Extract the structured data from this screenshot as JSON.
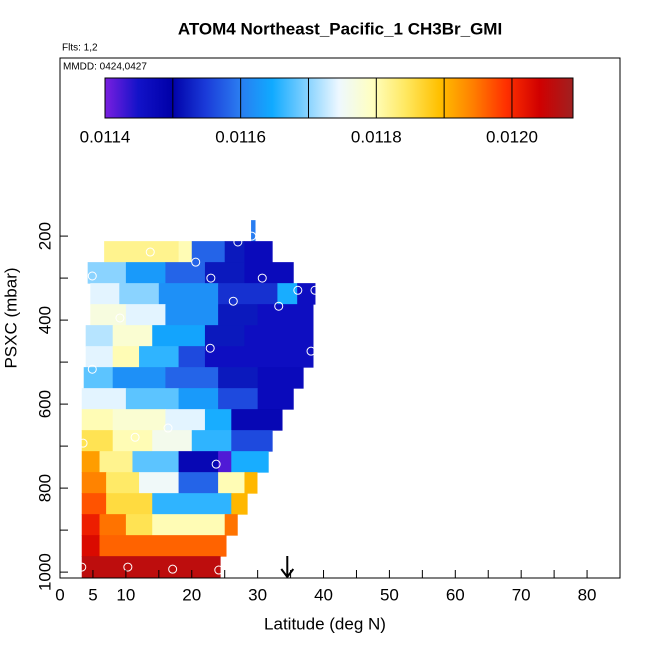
{
  "chart_data": {
    "type": "curtain",
    "title": "ATOM4 Northeast_Pacific_1 CH3Br_GMI",
    "flights": "Flts: 1,2",
    "dates": "MMDD: 0424,0427",
    "xlabel": "Latitude (deg N)",
    "ylabel": "PSXC (mbar)",
    "xlim": [
      0,
      85
    ],
    "xticks": [
      0,
      5,
      10,
      20,
      30,
      40,
      50,
      60,
      70,
      80
    ],
    "xminor_ticks": [
      15,
      25,
      35,
      45,
      55,
      65,
      75,
      85
    ],
    "ylim": [
      1014,
      -224
    ],
    "yticks": [
      200,
      400,
      600,
      800,
      1000
    ],
    "yminor_ticks": [
      300,
      500,
      700,
      900
    ],
    "colorbar": {
      "lim": [
        0.0114,
        0.01209
      ],
      "ticks": [
        0.0114,
        0.0116,
        0.0118,
        {
          "value": 0.012,
          "label": "0.0120"
        }
      ],
      "breaks": [
        0.0115,
        0.0116,
        0.0117,
        0.0118,
        0.0119,
        0.012
      ],
      "colors": [
        "#7a1fe0",
        "#1212c8",
        "#0000a8",
        "#1a3ad8",
        "#2a7af0",
        "#10aaff",
        "#80d0ff",
        "#eef8ff",
        "#ffffc0",
        "#ffe860",
        "#ffc000",
        "#ff8000",
        "#ff3000",
        "#d00000",
        "#a02020"
      ]
    },
    "rows": [
      {
        "p": [
          162,
          212
        ],
        "cells": [
          [
            29,
            29.6,
            0.0116
          ]
        ]
      },
      {
        "p": [
          212,
          262
        ],
        "cells": [
          [
            6.7,
            18,
            0.01182
          ],
          [
            18,
            20,
            0.0118
          ],
          [
            20,
            25,
            0.01158
          ],
          [
            25,
            28,
            0.01152
          ],
          [
            28,
            32.2,
            0.01147
          ]
        ]
      },
      {
        "p": [
          262,
          312
        ],
        "cells": [
          [
            4.2,
            10,
            0.0117
          ],
          [
            10,
            16,
            0.01163
          ],
          [
            16,
            22,
            0.01158
          ],
          [
            22,
            28,
            0.01152
          ],
          [
            28,
            35.4,
            0.01147
          ]
        ]
      },
      {
        "p": [
          312,
          362
        ],
        "cells": [
          [
            4.6,
            9,
            0.01174
          ],
          [
            9,
            15,
            0.0117
          ],
          [
            15,
            24,
            0.01162
          ],
          [
            24,
            33,
            0.01154
          ],
          [
            33,
            36,
            0.01165
          ],
          [
            36,
            38.7,
            0.01146
          ]
        ]
      },
      {
        "p": [
          362,
          412
        ],
        "cells": [
          [
            4.6,
            10,
            0.01177
          ],
          [
            10,
            16,
            0.01174
          ],
          [
            16,
            24,
            0.01162
          ],
          [
            24,
            30,
            0.01152
          ],
          [
            30,
            38.4,
            0.01146
          ]
        ]
      },
      {
        "p": [
          412,
          462
        ],
        "cells": [
          [
            3.9,
            8,
            0.01172
          ],
          [
            8,
            14,
            0.01178
          ],
          [
            14,
            22,
            0.01164
          ],
          [
            22,
            28,
            0.01152
          ],
          [
            28,
            38.4,
            0.01146
          ]
        ]
      },
      {
        "p": [
          462,
          512
        ],
        "cells": [
          [
            3.9,
            8,
            0.01174
          ],
          [
            8,
            12,
            0.0118
          ],
          [
            12,
            18,
            0.01166
          ],
          [
            18,
            22,
            0.01156
          ],
          [
            22,
            38.4,
            0.01146
          ]
        ]
      },
      {
        "p": [
          512,
          562
        ],
        "cells": [
          [
            3.6,
            8,
            0.01168
          ],
          [
            8,
            16,
            0.01162
          ],
          [
            16,
            24,
            0.01158
          ],
          [
            24,
            30,
            0.01152
          ],
          [
            30,
            36.9,
            0.01147
          ]
        ]
      },
      {
        "p": [
          562,
          612
        ],
        "cells": [
          [
            3.3,
            10,
            0.01174
          ],
          [
            10,
            18,
            0.01168
          ],
          [
            18,
            24,
            0.01163
          ],
          [
            24,
            30,
            0.01156
          ],
          [
            30,
            35.4,
            0.01147
          ]
        ]
      },
      {
        "p": [
          612,
          662
        ],
        "cells": [
          [
            3.3,
            8,
            0.0118
          ],
          [
            8,
            16,
            0.01178
          ],
          [
            16,
            22,
            0.01174
          ],
          [
            22,
            26,
            0.01165
          ],
          [
            26,
            33.7,
            0.01148
          ]
        ]
      },
      {
        "p": [
          662,
          712
        ],
        "cells": [
          [
            3.3,
            8,
            0.01185
          ],
          [
            8,
            14,
            0.0118
          ],
          [
            14,
            20,
            0.01176
          ],
          [
            20,
            26,
            0.01166
          ],
          [
            26,
            32.2,
            0.01156
          ]
        ]
      },
      {
        "p": [
          712,
          762
        ],
        "cells": [
          [
            3.3,
            6,
            0.01192
          ],
          [
            6,
            11,
            0.01182
          ],
          [
            11,
            18,
            0.01168
          ],
          [
            18,
            24,
            0.01148
          ],
          [
            24,
            26,
            0.01142
          ],
          [
            26,
            31.6,
            0.01165
          ]
        ]
      },
      {
        "p": [
          762,
          812
        ],
        "cells": [
          [
            3.3,
            7,
            0.01194
          ],
          [
            7,
            12,
            0.01184
          ],
          [
            12,
            18,
            0.01175
          ],
          [
            18,
            24,
            0.01158
          ],
          [
            24,
            28,
            0.0118
          ],
          [
            28,
            29.9,
            0.0119
          ]
        ]
      },
      {
        "p": [
          812,
          862
        ],
        "cells": [
          [
            3.3,
            7,
            0.01197
          ],
          [
            7,
            14,
            0.01186
          ],
          [
            14,
            26,
            0.01166
          ],
          [
            26,
            28.4,
            0.0119
          ]
        ]
      },
      {
        "p": [
          862,
          912
        ],
        "cells": [
          [
            3.3,
            6,
            0.01201
          ],
          [
            6,
            10,
            0.01195
          ],
          [
            10,
            14,
            0.01185
          ],
          [
            14,
            25,
            0.0118
          ],
          [
            25,
            26.9,
            0.01195
          ]
        ]
      },
      {
        "p": [
          912,
          962
        ],
        "cells": [
          [
            3.3,
            6,
            0.01203
          ],
          [
            6,
            25.2,
            0.01196
          ]
        ]
      },
      {
        "p": [
          962,
          1014
        ],
        "cells": [
          [
            3.3,
            24.3,
            0.01206
          ]
        ]
      }
    ],
    "points": {
      "x": [
        27,
        29.1,
        20.6,
        13.7,
        22.9,
        30.7,
        4.9,
        26.3,
        33.2,
        36.1,
        38.7,
        9.1,
        22.8,
        38.1,
        4.9,
        16.4,
        11.4,
        3.5,
        23.7,
        3.3,
        10.3,
        17.1,
        24.1
      ],
      "y": [
        214,
        200,
        262,
        238,
        300,
        300,
        295,
        355,
        367,
        329,
        329,
        395,
        467,
        474,
        517,
        657,
        679,
        693,
        743,
        988,
        988,
        993,
        995
      ]
    },
    "marker_x": 34.5
  }
}
